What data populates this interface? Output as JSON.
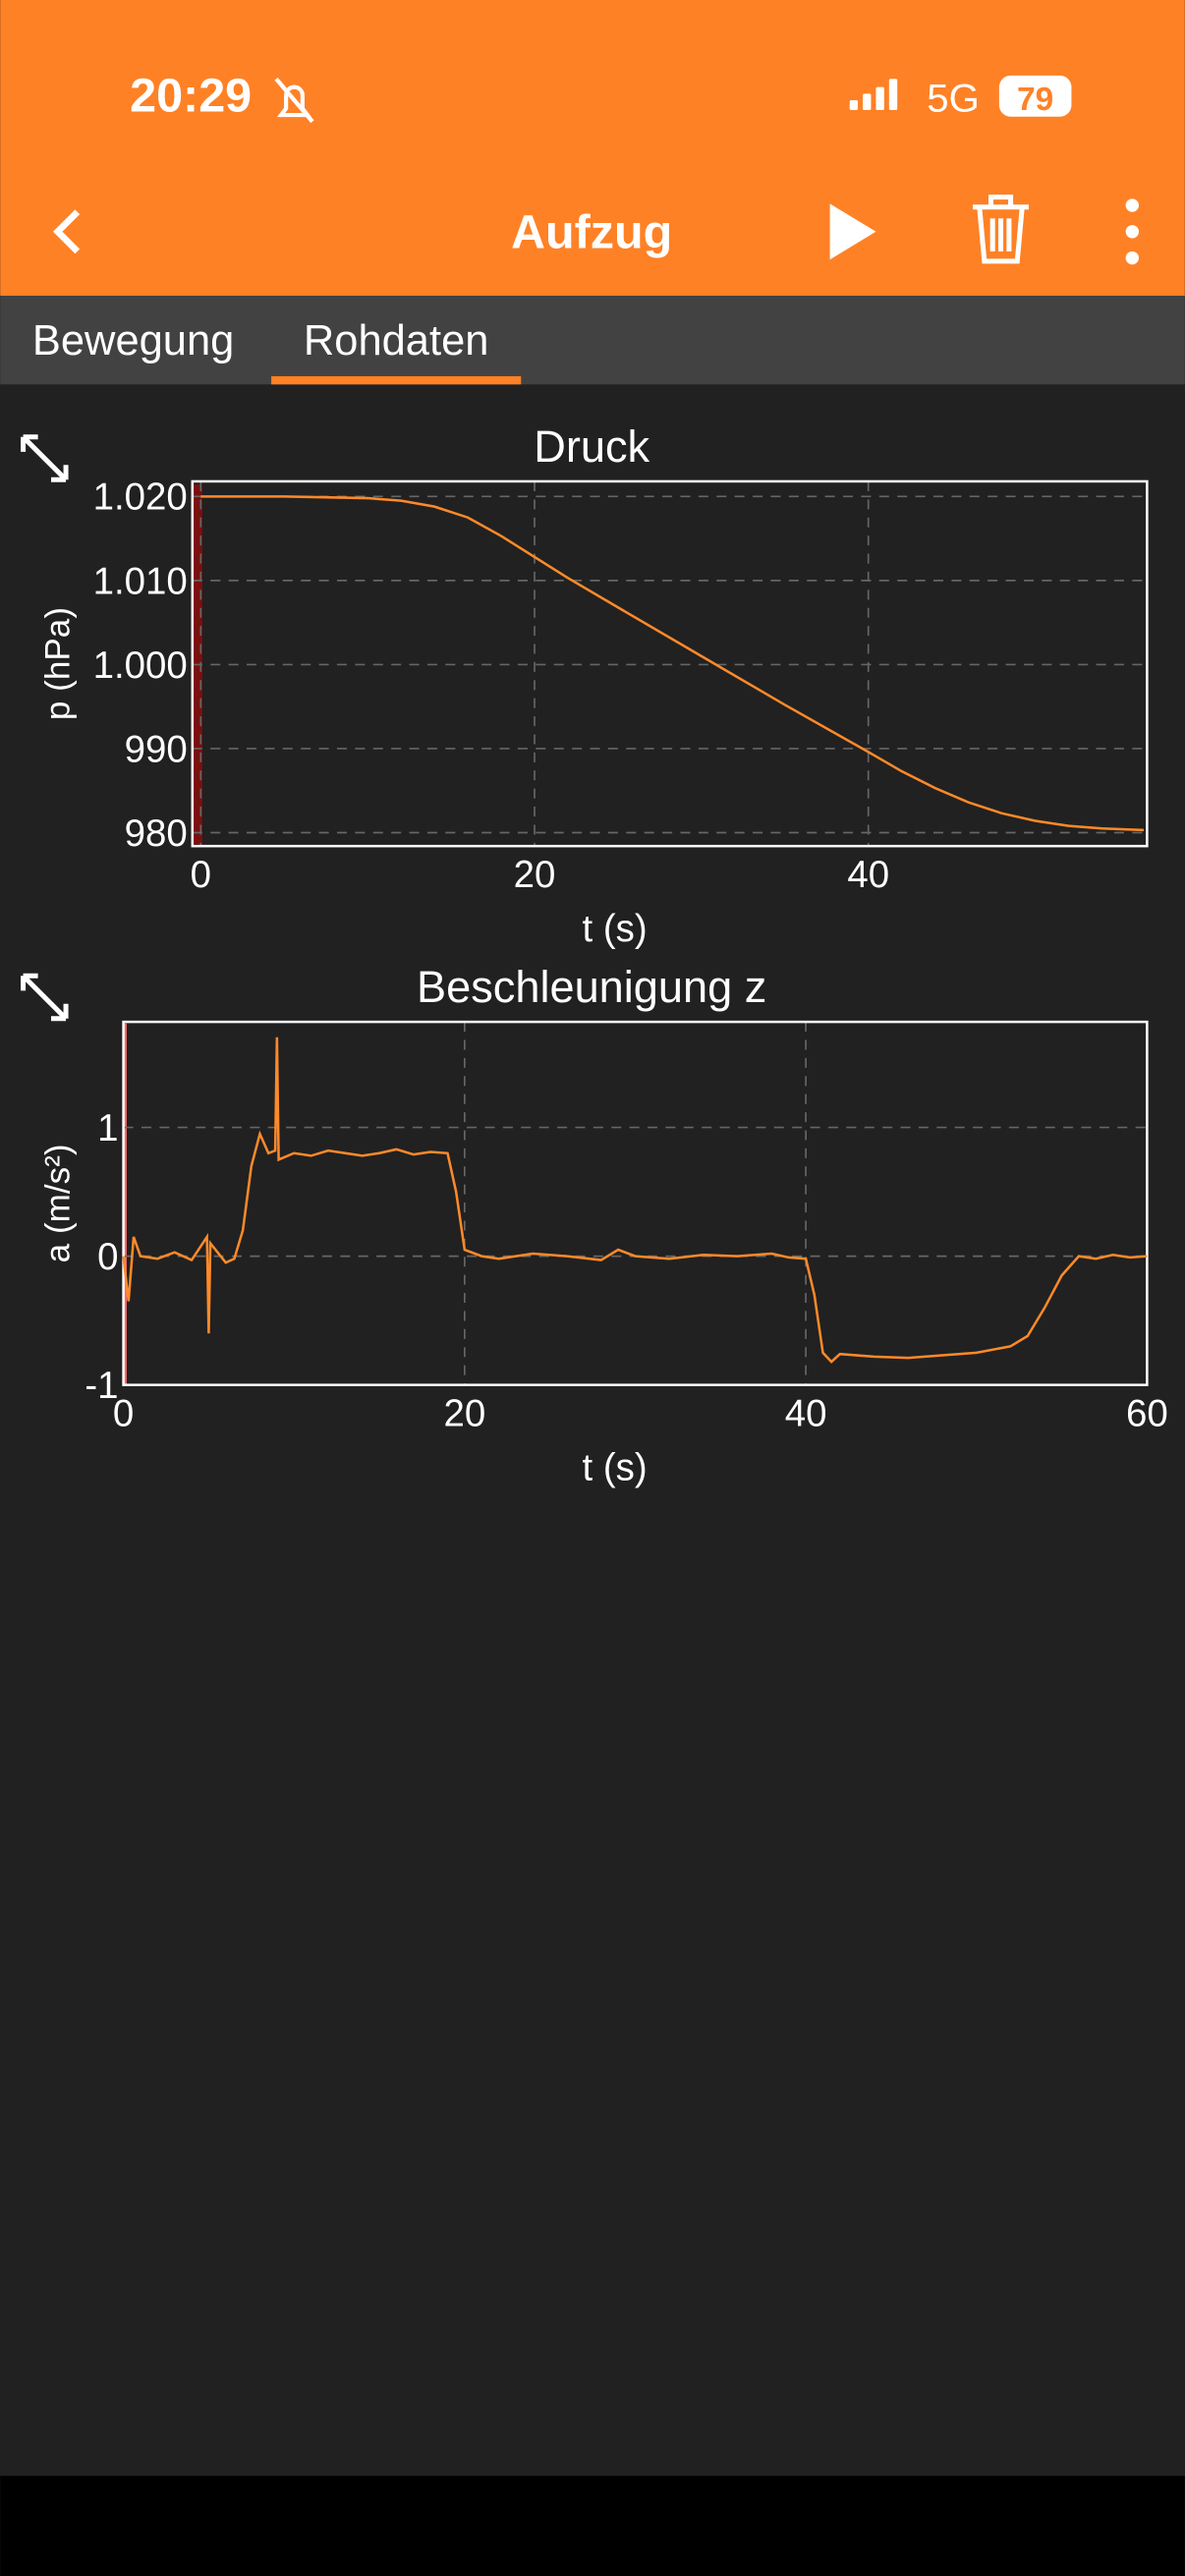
{
  "status_bar": {
    "time": "20:29",
    "network": "5G",
    "battery": "79"
  },
  "app_bar": {
    "title": "Aufzug"
  },
  "tabs": [
    "Bewegung",
    "Rohdaten"
  ],
  "chart_data": [
    {
      "type": "line",
      "title": "Druck",
      "x_label": "t (s)",
      "y_label": "p (hPa)",
      "x": [
        0,
        5,
        10,
        12,
        14,
        16,
        18,
        20,
        22,
        25,
        30,
        35,
        40,
        42,
        44,
        46,
        48,
        50,
        52,
        54,
        56.5
      ],
      "series": [
        {
          "color": "#ff8a2a",
          "values": [
            1020,
            1020,
            1019.8,
            1019.5,
            1018.8,
            1017.5,
            1015.3,
            1012.8,
            1010.3,
            1006.8,
            1001,
            995.2,
            989.6,
            987.3,
            985.3,
            983.6,
            982.3,
            981.4,
            980.8,
            980.5,
            980.3
          ]
        }
      ],
      "xlim": [
        -0.5,
        56.7
      ],
      "xticks": [
        0,
        20,
        40
      ],
      "ylim": [
        978.4,
        1021.8
      ],
      "yticks": [
        {
          "value": 1020,
          "label": "1.020"
        },
        {
          "value": 1010,
          "label": "1.010"
        },
        {
          "value": 1000,
          "label": "1.000"
        },
        990,
        980
      ],
      "grid": true
    },
    {
      "type": "line",
      "title": "Beschleunigung z",
      "x_label": "t (s)",
      "y_label": "a (m/s²)",
      "x": [
        0,
        0.3,
        0.6,
        1,
        2,
        3,
        4,
        4.9,
        5,
        5.1,
        6,
        6.5,
        7,
        7.5,
        8,
        8.5,
        8.9,
        9,
        9.1,
        10,
        11,
        12,
        13,
        14,
        15,
        16,
        17,
        18,
        19,
        19.5,
        20,
        21,
        22,
        24,
        26,
        28,
        29,
        30,
        32,
        34,
        36,
        38,
        39,
        40,
        40.5,
        41,
        41.5,
        42,
        44,
        46,
        48,
        50,
        52,
        53,
        54,
        55,
        56,
        57,
        58,
        59,
        60
      ],
      "series": [
        {
          "color": "#ff8a2a",
          "values": [
            0.0,
            -0.35,
            0.15,
            0.0,
            -0.02,
            0.03,
            -0.03,
            0.15,
            -0.6,
            0.1,
            -0.05,
            -0.02,
            0.2,
            0.7,
            0.95,
            0.8,
            0.82,
            1.7,
            0.75,
            0.8,
            0.78,
            0.82,
            0.8,
            0.78,
            0.8,
            0.83,
            0.79,
            0.81,
            0.8,
            0.5,
            0.05,
            0.0,
            -0.02,
            0.02,
            0.0,
            -0.03,
            0.05,
            0.0,
            -0.02,
            0.01,
            0.0,
            0.02,
            -0.01,
            -0.02,
            -0.3,
            -0.75,
            -0.82,
            -0.76,
            -0.78,
            -0.79,
            -0.77,
            -0.75,
            -0.7,
            -0.62,
            -0.4,
            -0.15,
            0.0,
            -0.02,
            0.01,
            -0.01,
            0.0
          ]
        }
      ],
      "xlim": [
        0,
        60
      ],
      "xticks": [
        0,
        20,
        40,
        60
      ],
      "ylim": [
        -1,
        1.82
      ],
      "yticks": [
        -1,
        0,
        1
      ],
      "grid": true
    }
  ]
}
